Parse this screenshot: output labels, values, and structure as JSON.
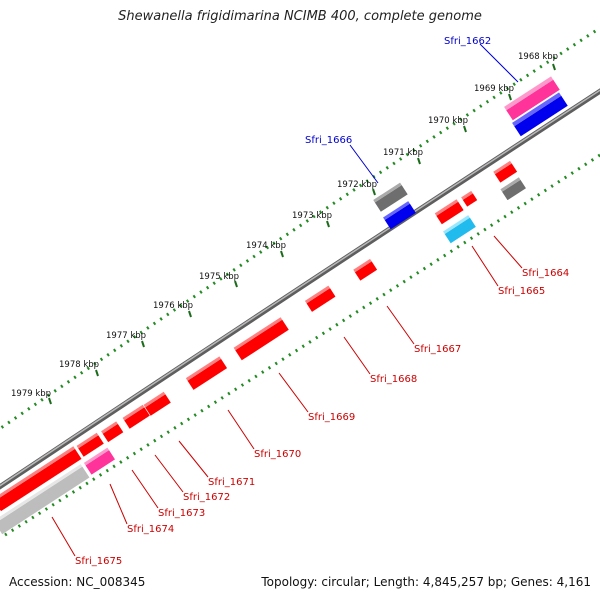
{
  "title": "Shewanella frigidimarina NCIMB 400, complete genome",
  "footer": {
    "accession": "Accession: NC_008345",
    "summary": "Topology: circular; Length: 4,845,257 bp; Genes: 4,161"
  },
  "colors": {
    "backbone": "#7a7a7a",
    "dots": "#228b22",
    "label_red": "#cc0000",
    "label_blue": "#0000cc",
    "gene_red": "#ff0000",
    "gene_blue": "#0000ee",
    "gene_pink": "#ff3399",
    "gene_gray": "#6e6e6e",
    "gene_cyan": "#22bbee",
    "gene_lightgray": "#bdbdbd"
  },
  "ticks": [
    {
      "label": "1968 kbp"
    },
    {
      "label": "1969 kbp"
    },
    {
      "label": "1970 kbp"
    },
    {
      "label": "1971 kbp"
    },
    {
      "label": "1972 kbp"
    },
    {
      "label": "1973 kbp"
    },
    {
      "label": "1974 kbp"
    },
    {
      "label": "1975 kbp"
    },
    {
      "label": "1976 kbp"
    },
    {
      "label": "1977 kbp"
    },
    {
      "label": "1978 kbp"
    },
    {
      "label": "1979 kbp"
    }
  ],
  "gene_labels": [
    {
      "text": "Sfri_1662",
      "color": "blue"
    },
    {
      "text": "Sfri_1666",
      "color": "blue"
    },
    {
      "text": "Sfri_1664",
      "color": "red"
    },
    {
      "text": "Sfri_1665",
      "color": "red"
    },
    {
      "text": "Sfri_1667",
      "color": "red"
    },
    {
      "text": "Sfri_1668",
      "color": "red"
    },
    {
      "text": "Sfri_1669",
      "color": "red"
    },
    {
      "text": "Sfri_1670",
      "color": "red"
    },
    {
      "text": "Sfri_1671",
      "color": "red"
    },
    {
      "text": "Sfri_1672",
      "color": "red"
    },
    {
      "text": "Sfri_1673",
      "color": "red"
    },
    {
      "text": "Sfri_1674",
      "color": "red"
    },
    {
      "text": "Sfri_1675",
      "color": "red"
    }
  ]
}
